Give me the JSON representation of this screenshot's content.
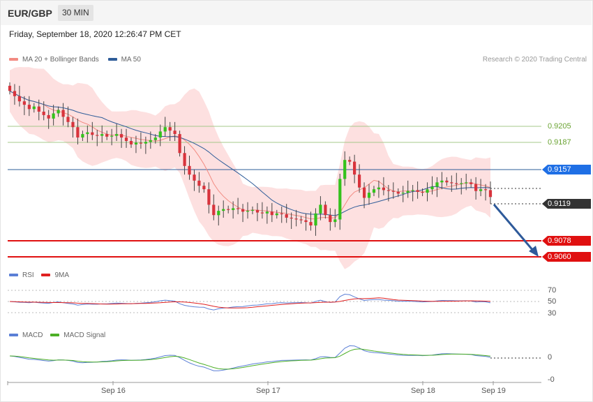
{
  "header": {
    "pair": "EUR/GBP",
    "timeframe": "30 MIN",
    "datetime": "Friday, September 18, 2020 12:26:47 PM CET"
  },
  "legend_main": [
    {
      "label": "MA 20 + Bollinger Bands",
      "color": "#f28b82"
    },
    {
      "label": "MA 50",
      "color": "#2e5c99"
    }
  ],
  "credit": "Research © 2020 Trading Central",
  "legend_rsi": [
    {
      "label": "RSI",
      "color": "#5b7fd6"
    },
    {
      "label": "9MA",
      "color": "#e02020"
    }
  ],
  "legend_macd": [
    {
      "label": "MACD",
      "color": "#5b7fd6"
    },
    {
      "label": "MACD Signal",
      "color": "#4caf26"
    }
  ],
  "colors": {
    "up": "#34c21c",
    "down": "#d8333c",
    "band": "#fde0e0",
    "resistance": "#6aa332",
    "pivot": "#2e5c99",
    "support": "#e01010",
    "arrow": "#2e5a9a"
  },
  "x_labels": [
    "Sep 16",
    "Sep 17",
    "Sep 18",
    "Sep 19"
  ],
  "levels": {
    "r2": "0.9205",
    "r1": "0.9187",
    "pivot": "0.9157",
    "last": "0.9119",
    "s1": "0.9078",
    "s2": "0.9060"
  },
  "rsi_ticks": [
    "70",
    "50",
    "30"
  ],
  "macd_ticks": [
    "0",
    "-0"
  ],
  "chart_data": {
    "type": "candlestick",
    "title": "EUR/GBP 30 MIN",
    "y_range": [
      0.9048,
      0.9252
    ],
    "close_series": [
      0.9242,
      0.9236,
      0.923,
      0.9226,
      0.9221,
      0.9224,
      0.9218,
      0.9214,
      0.921,
      0.9216,
      0.922,
      0.9212,
      0.9206,
      0.92,
      0.9188,
      0.9192,
      0.9194,
      0.9191,
      0.919,
      0.9192,
      0.9189,
      0.919,
      0.9192,
      0.9188,
      0.9184,
      0.918,
      0.9182,
      0.9181,
      0.9183,
      0.9185,
      0.9188,
      0.9195,
      0.92,
      0.9196,
      0.9192,
      0.917,
      0.9155,
      0.9145,
      0.9138,
      0.9132,
      0.9128,
      0.911,
      0.9098,
      0.9103,
      0.9105,
      0.9104,
      0.9106,
      0.9105,
      0.9102,
      0.9103,
      0.9104,
      0.9101,
      0.91,
      0.9102,
      0.9098,
      0.91,
      0.9099,
      0.9095,
      0.9094,
      0.9093,
      0.9092,
      0.909,
      0.9086,
      0.91,
      0.911,
      0.9098,
      0.909,
      0.9093,
      0.914,
      0.9162,
      0.916,
      0.9145,
      0.913,
      0.9118,
      0.9124,
      0.9128,
      0.913,
      0.9127,
      0.9126,
      0.9125,
      0.9123,
      0.9124,
      0.9126,
      0.9127,
      0.9125,
      0.9124,
      0.9128,
      0.9131,
      0.9136,
      0.9138,
      0.9136,
      0.9135,
      0.9134,
      0.9135,
      0.9136,
      0.9134,
      0.9126,
      0.9128,
      0.9127,
      0.9119
    ],
    "ma20_last": 0.9132,
    "ma50_last": 0.9125,
    "rsi": {
      "range": [
        20,
        80
      ],
      "ticks": [
        70,
        50,
        30
      ],
      "last": 42,
      "ma9_last": 47
    },
    "macd": {
      "ticks": [
        0
      ]
    }
  }
}
